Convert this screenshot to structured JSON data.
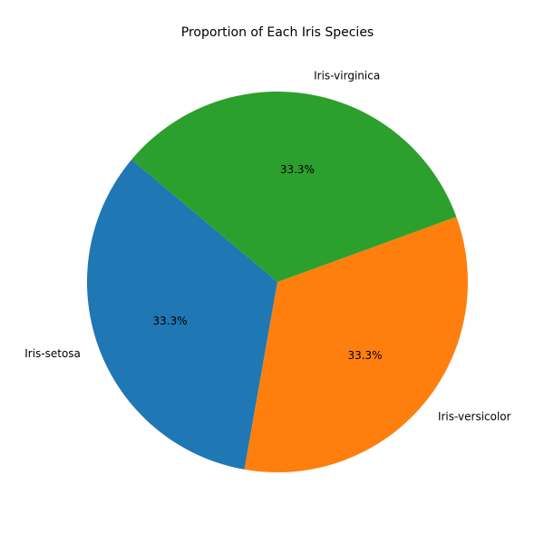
{
  "chart_data": {
    "type": "pie",
    "title": "Proportion of Each Iris Species",
    "start_angle_deg": 140,
    "direction": "counterclockwise",
    "slices": [
      {
        "label": "Iris-setosa",
        "value": 50,
        "pct_label": "33.3%",
        "color": "#1f77b4"
      },
      {
        "label": "Iris-versicolor",
        "value": 50,
        "pct_label": "33.3%",
        "color": "#ff7f0e"
      },
      {
        "label": "Iris-virginica",
        "value": 50,
        "pct_label": "33.3%",
        "color": "#2ca02c"
      }
    ]
  }
}
